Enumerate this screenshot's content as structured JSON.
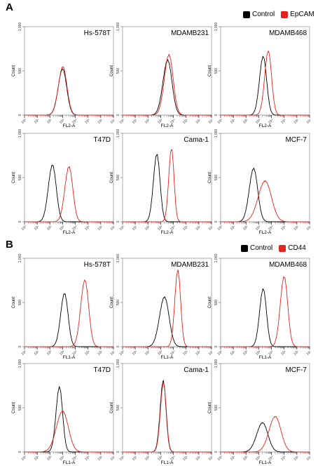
{
  "panels": [
    {
      "letter": "A",
      "legend": {
        "control": "Control",
        "marker": "EpCAM"
      }
    },
    {
      "letter": "B",
      "legend": {
        "control": "Control",
        "marker": "CD44"
      }
    }
  ],
  "colors": {
    "control": "#000000",
    "marker": "#e8211c"
  },
  "chart_data": [
    {
      "type": "line",
      "panel": "A",
      "title": "Hs-578T",
      "xlabel": "FL2-A",
      "ylabel": "Count",
      "x_scale": "log",
      "xlim": [
        1,
        10000000
      ],
      "ylim": [
        0,
        1000
      ],
      "yticks": [
        "0",
        "500",
        "1,000"
      ],
      "series": [
        {
          "name": "Control",
          "peak_x": 3.0,
          "peak_count": 520,
          "width": 0.32
        },
        {
          "name": "EpCAM",
          "peak_x": 3.02,
          "peak_count": 545,
          "width": 0.32
        }
      ]
    },
    {
      "type": "line",
      "panel": "A",
      "title": "MDAMB231",
      "xlabel": "FL2-A",
      "ylabel": "Count",
      "x_scale": "log",
      "xlim": [
        1,
        10000000
      ],
      "ylim": [
        0,
        1000
      ],
      "yticks": [
        "0",
        "500",
        "1,000"
      ],
      "series": [
        {
          "name": "Control",
          "peak_x": 3.55,
          "peak_count": 620,
          "width": 0.34
        },
        {
          "name": "EpCAM",
          "peak_x": 3.65,
          "peak_count": 680,
          "width": 0.33
        }
      ]
    },
    {
      "type": "line",
      "panel": "A",
      "title": "MDAMB468",
      "xlabel": "FL2-A",
      "ylabel": "Count",
      "x_scale": "log",
      "xlim": [
        1,
        10000000
      ],
      "ylim": [
        0,
        1000
      ],
      "yticks": [
        "0",
        "500",
        "1,000"
      ],
      "series": [
        {
          "name": "Control",
          "peak_x": 3.35,
          "peak_count": 660,
          "width": 0.27
        },
        {
          "name": "EpCAM",
          "peak_x": 3.75,
          "peak_count": 720,
          "width": 0.26
        }
      ]
    },
    {
      "type": "line",
      "panel": "A",
      "title": "T47D",
      "xlabel": "FL2-A",
      "ylabel": "Count",
      "x_scale": "log",
      "xlim": [
        1,
        10000000
      ],
      "ylim": [
        0,
        1000
      ],
      "yticks": [
        "0",
        "500",
        "1,000"
      ],
      "series": [
        {
          "name": "Control",
          "peak_x": 2.2,
          "peak_count": 640,
          "width": 0.3
        },
        {
          "name": "EpCAM",
          "peak_x": 3.5,
          "peak_count": 620,
          "width": 0.3
        }
      ]
    },
    {
      "type": "line",
      "panel": "A",
      "title": "Cama-1",
      "xlabel": "FL2-A",
      "ylabel": "Count",
      "x_scale": "log",
      "xlim": [
        1,
        10000000
      ],
      "ylim": [
        0,
        1000
      ],
      "yticks": [
        "0",
        "500",
        "1,000"
      ],
      "series": [
        {
          "name": "Control",
          "peak_x": 2.7,
          "peak_count": 760,
          "width": 0.25
        },
        {
          "name": "EpCAM",
          "peak_x": 3.85,
          "peak_count": 820,
          "width": 0.2
        }
      ]
    },
    {
      "type": "line",
      "panel": "A",
      "title": "MCF-7",
      "xlabel": "FL2-A",
      "ylabel": "Count",
      "x_scale": "log",
      "xlim": [
        1,
        10000000
      ],
      "ylim": [
        0,
        1000
      ],
      "yticks": [
        "0",
        "500",
        "1,000"
      ],
      "series": [
        {
          "name": "Control",
          "peak_x": 2.6,
          "peak_count": 600,
          "width": 0.32
        },
        {
          "name": "EpCAM",
          "peak_x": 3.5,
          "peak_count": 460,
          "width": 0.5
        }
      ]
    },
    {
      "type": "line",
      "panel": "B",
      "title": "Hs-578T",
      "xlabel": "FL1-A",
      "ylabel": "Count",
      "x_scale": "log",
      "xlim": [
        1,
        10000000
      ],
      "ylim": [
        0,
        1000
      ],
      "yticks": [
        "0",
        "500",
        "1,000"
      ],
      "series": [
        {
          "name": "Control",
          "peak_x": 3.15,
          "peak_count": 600,
          "width": 0.28
        },
        {
          "name": "CD44",
          "peak_x": 4.75,
          "peak_count": 750,
          "width": 0.3
        }
      ]
    },
    {
      "type": "line",
      "panel": "B",
      "title": "MDAMB231",
      "xlabel": "FL1-A",
      "ylabel": "Count",
      "x_scale": "log",
      "xlim": [
        1,
        10000000
      ],
      "ylim": [
        0,
        1000
      ],
      "yticks": [
        "0",
        "500",
        "1,000"
      ],
      "series": [
        {
          "name": "Control",
          "peak_x": 3.3,
          "peak_count": 560,
          "width": 0.36
        },
        {
          "name": "CD44",
          "peak_x": 4.35,
          "peak_count": 860,
          "width": 0.22
        }
      ]
    },
    {
      "type": "line",
      "panel": "B",
      "title": "MDAMB468",
      "xlabel": "FL1-A",
      "ylabel": "Count",
      "x_scale": "log",
      "xlim": [
        1,
        10000000
      ],
      "ylim": [
        0,
        1000
      ],
      "yticks": [
        "0",
        "500",
        "1,000"
      ],
      "series": [
        {
          "name": "Control",
          "peak_x": 3.35,
          "peak_count": 650,
          "width": 0.26
        },
        {
          "name": "CD44",
          "peak_x": 5.0,
          "peak_count": 790,
          "width": 0.28
        }
      ]
    },
    {
      "type": "line",
      "panel": "B",
      "title": "T47D",
      "xlabel": "FL1-A",
      "ylabel": "Count",
      "x_scale": "log",
      "xlim": [
        1,
        10000000
      ],
      "ylim": [
        0,
        1000
      ],
      "yticks": [
        "0",
        "500",
        "1,000"
      ],
      "series": [
        {
          "name": "Control",
          "peak_x": 2.75,
          "peak_count": 730,
          "width": 0.25
        },
        {
          "name": "CD44",
          "peak_x": 3.0,
          "peak_count": 460,
          "width": 0.45
        }
      ]
    },
    {
      "type": "line",
      "panel": "B",
      "title": "Cama-1",
      "xlabel": "FL1-A",
      "ylabel": "Count",
      "x_scale": "log",
      "xlim": [
        1,
        10000000
      ],
      "ylim": [
        0,
        1000
      ],
      "yticks": [
        "0",
        "500",
        "1,000"
      ],
      "series": [
        {
          "name": "Control",
          "peak_x": 3.2,
          "peak_count": 800,
          "width": 0.22
        },
        {
          "name": "CD44",
          "peak_x": 3.22,
          "peak_count": 780,
          "width": 0.22
        }
      ]
    },
    {
      "type": "line",
      "panel": "B",
      "title": "MCF-7",
      "xlabel": "FL1-A",
      "ylabel": "Count",
      "x_scale": "log",
      "xlim": [
        1,
        10000000
      ],
      "ylim": [
        0,
        1000
      ],
      "yticks": [
        "0",
        "500",
        "1,000"
      ],
      "series": [
        {
          "name": "Control",
          "peak_x": 3.3,
          "peak_count": 330,
          "width": 0.42
        },
        {
          "name": "CD44",
          "peak_x": 4.3,
          "peak_count": 400,
          "width": 0.45
        }
      ]
    }
  ]
}
